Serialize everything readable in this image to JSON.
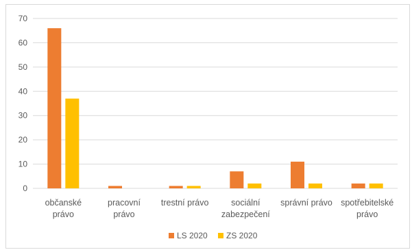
{
  "chart_data": {
    "type": "bar",
    "categories": [
      [
        "občanské",
        "právo"
      ],
      [
        "pracovní",
        "právo"
      ],
      [
        "trestní právo"
      ],
      [
        "sociální",
        "zabezpečení"
      ],
      [
        "správní právo"
      ],
      [
        "spotřebitelské",
        "právo"
      ]
    ],
    "series": [
      {
        "name": "LS 2020",
        "color": "#ED7D31",
        "values": [
          66,
          1,
          1,
          7,
          11,
          2
        ]
      },
      {
        "name": "ZS 2020",
        "color": "#FFC000",
        "values": [
          37,
          0,
          1,
          2,
          2,
          2
        ]
      }
    ],
    "title": "",
    "xlabel": "",
    "ylabel": "",
    "ylim": [
      0,
      70
    ],
    "yticks": [
      0,
      10,
      20,
      30,
      40,
      50,
      60,
      70
    ],
    "grid": true,
    "gridColor": "#d9d9d9",
    "legend_position": "bottom"
  }
}
